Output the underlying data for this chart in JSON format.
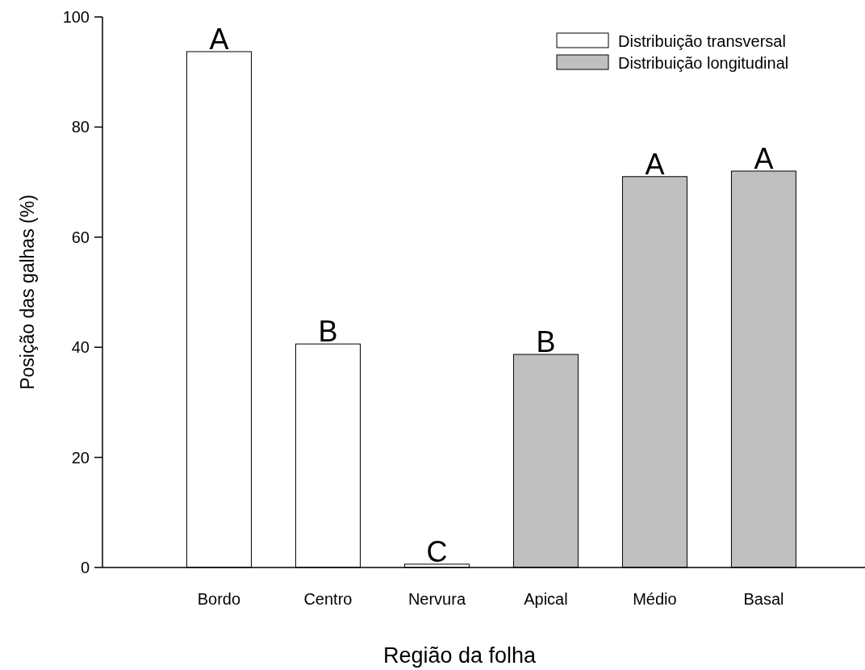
{
  "chart_data": {
    "type": "bar",
    "xlabel": "Região da folha",
    "ylabel": "Posição das galhas (%)",
    "categories": [
      "Bordo",
      "Centro",
      "Nervura",
      "Apical",
      "Médio",
      "Basal"
    ],
    "series": [
      {
        "name": "Distribuição transversal",
        "color": "#ffffff",
        "values": [
          93.7,
          40.6,
          0.6,
          null,
          null,
          null
        ]
      },
      {
        "name": "Distribuição longitudinal",
        "color": "#c0c0c0",
        "values": [
          null,
          null,
          null,
          38.7,
          71.0,
          72.0
        ]
      }
    ],
    "ylim": [
      0,
      100
    ],
    "yticks": [
      0,
      20,
      40,
      60,
      80,
      100
    ],
    "grid": false,
    "legend": "top right",
    "annotations": [
      {
        "text": "A",
        "x": "Bordo",
        "y": 93.7
      },
      {
        "text": "B",
        "x": "Centro",
        "y": 40.6
      },
      {
        "text": "C",
        "x": "Nervura",
        "y": 0.6
      },
      {
        "text": "B",
        "x": "Apical",
        "y": 38.7
      },
      {
        "text": "A",
        "x": "Médio",
        "y": 71.0
      },
      {
        "text": "A",
        "x": "Basal",
        "y": 72.0
      }
    ]
  }
}
